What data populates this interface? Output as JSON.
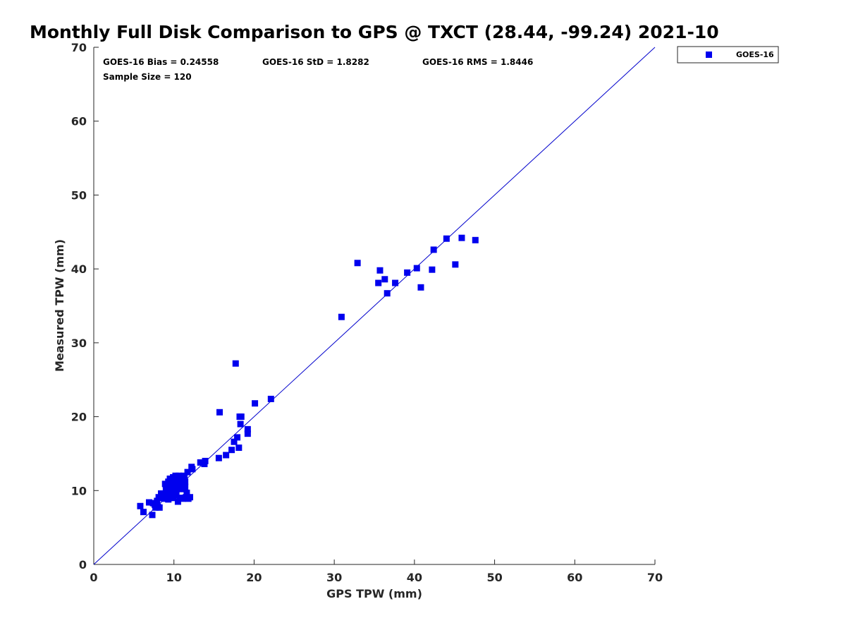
{
  "colors": {
    "series": "#0000ee",
    "reference_line": "#0000cc",
    "axis": "#262626",
    "background": "#ffffff"
  },
  "chart_data": {
    "type": "scatter",
    "title": "Monthly Full Disk Comparison to GPS @ TXCT (28.44, -99.24) 2021-10",
    "xlabel": "GPS TPW (mm)",
    "ylabel": "Measured TPW (mm)",
    "xlim": [
      0,
      70
    ],
    "ylim": [
      0,
      70
    ],
    "xticks": [
      "0",
      "10",
      "20",
      "30",
      "40",
      "50",
      "60",
      "70"
    ],
    "yticks": [
      "0",
      "10",
      "20",
      "30",
      "40",
      "50",
      "60",
      "70"
    ],
    "grid": false,
    "legend_position": "top-right-outside",
    "reference_line": {
      "from": [
        0,
        0
      ],
      "to": [
        70,
        70
      ]
    },
    "stats": {
      "bias": "GOES-16 Bias = 0.24558",
      "std": "GOES-16 StD = 1.8282",
      "rms": "GOES-16 RMS = 1.8446",
      "sample_size": "Sample Size = 120"
    },
    "series": [
      {
        "name": "GOES-16",
        "marker": "square",
        "x": [
          5.8,
          6.2,
          6.9,
          7.3,
          7.4,
          7.6,
          7.7,
          7.9,
          8.0,
          8.1,
          8.2,
          8.4,
          8.5,
          8.6,
          8.8,
          8.9,
          9.0,
          9.0,
          9.1,
          9.2,
          9.3,
          9.4,
          9.5,
          9.6,
          9.6,
          9.7,
          9.8,
          9.8,
          9.9,
          10.0,
          10.0,
          10.1,
          10.2,
          10.3,
          10.4,
          10.5,
          10.5,
          10.6,
          10.7,
          10.8,
          10.9,
          11.0,
          11.0,
          11.1,
          11.2,
          11.3,
          11.4,
          11.5,
          11.6,
          11.7,
          11.8,
          12.0,
          12.2,
          12.3,
          9.9,
          10.6,
          11.1,
          11.4,
          9.3,
          10.8,
          13.3,
          13.8,
          13.9,
          15.6,
          15.7,
          16.5,
          17.2,
          17.5,
          17.7,
          17.9,
          18.1,
          18.2,
          18.3,
          18.4,
          19.2,
          19.2,
          20.1,
          22.1,
          30.9,
          32.9,
          35.5,
          35.7,
          36.3,
          36.6,
          37.6,
          39.1,
          40.3,
          40.8,
          42.2,
          42.4,
          44.0,
          45.1,
          45.9,
          47.6
        ],
        "y": [
          7.9,
          7.1,
          8.4,
          6.7,
          8.3,
          8.1,
          7.7,
          8.6,
          7.8,
          9.1,
          7.7,
          9.6,
          9.2,
          9.0,
          8.9,
          10.9,
          10.1,
          9.4,
          9.6,
          10.5,
          11.2,
          9.0,
          11.6,
          10.0,
          9.3,
          11.3,
          10.7,
          9.1,
          11.8,
          10.4,
          9.4,
          11.0,
          12.0,
          9.8,
          10.5,
          11.2,
          8.5,
          12.0,
          9.0,
          11.6,
          10.2,
          9.0,
          11.0,
          10.9,
          12.0,
          11.7,
          10.5,
          9.1,
          9.7,
          12.5,
          8.9,
          9.1,
          13.2,
          12.9,
          9.0,
          11.0,
          8.9,
          11.2,
          8.8,
          10.4,
          13.8,
          13.6,
          14.0,
          14.4,
          20.6,
          14.8,
          15.5,
          16.6,
          27.2,
          17.2,
          15.8,
          20.0,
          19.0,
          20.0,
          17.7,
          18.3,
          21.8,
          22.4,
          33.5,
          40.8,
          38.1,
          39.8,
          38.6,
          36.7,
          38.1,
          39.5,
          40.1,
          37.5,
          39.9,
          42.6,
          44.1,
          40.6,
          44.2,
          43.9
        ]
      }
    ]
  }
}
